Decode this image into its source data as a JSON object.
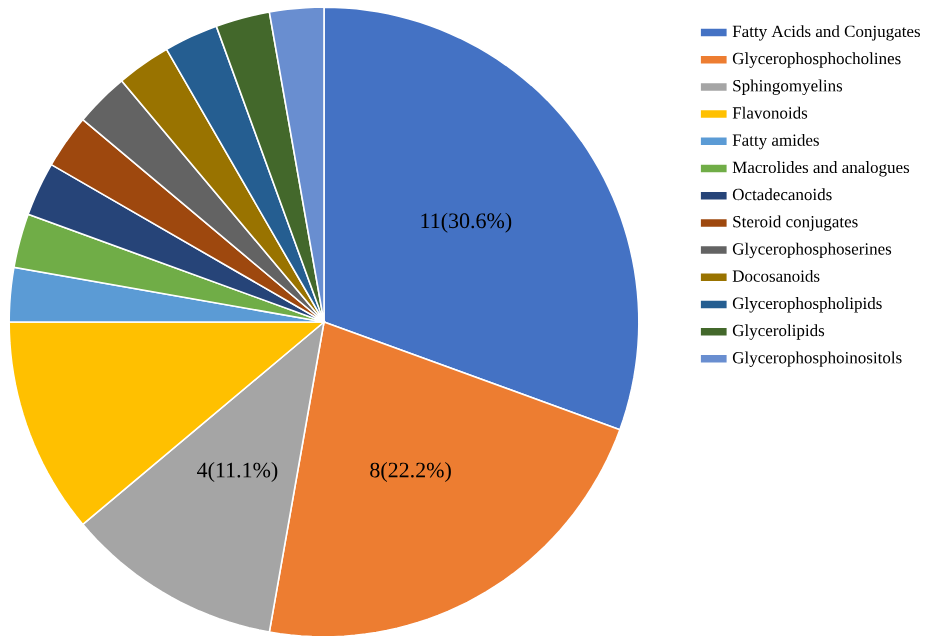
{
  "chart_data": {
    "type": "pie",
    "categories": [
      "Fatty Acids and Conjugates",
      "Glycerophosphocholines",
      "Sphingomyelins",
      "Flavonoids",
      "Fatty amides",
      "Macrolides and analogues",
      "Octadecanoids",
      "Steroid conjugates",
      "Glycerophosphoserines",
      "Docosanoids",
      "Glycerophospholipids",
      "Glycerolipids",
      "Glycerophosphoinositols"
    ],
    "values": [
      11,
      8,
      4,
      4,
      1,
      1,
      1,
      1,
      1,
      1,
      1,
      1,
      1
    ],
    "value_labels": [
      "11(30.6%)",
      "8(22.2%)",
      "4(11.1%)",
      null,
      null,
      null,
      null,
      null,
      null,
      null,
      null,
      null,
      null
    ],
    "colors": [
      "#4472c4",
      "#ed7d31",
      "#a5a5a5",
      "#ffc000",
      "#5b9bd5",
      "#70ad47",
      "#264478",
      "#9e480e",
      "#636363",
      "#997300",
      "#255e91",
      "#43682b",
      "#698ed0"
    ],
    "legend": "right"
  }
}
